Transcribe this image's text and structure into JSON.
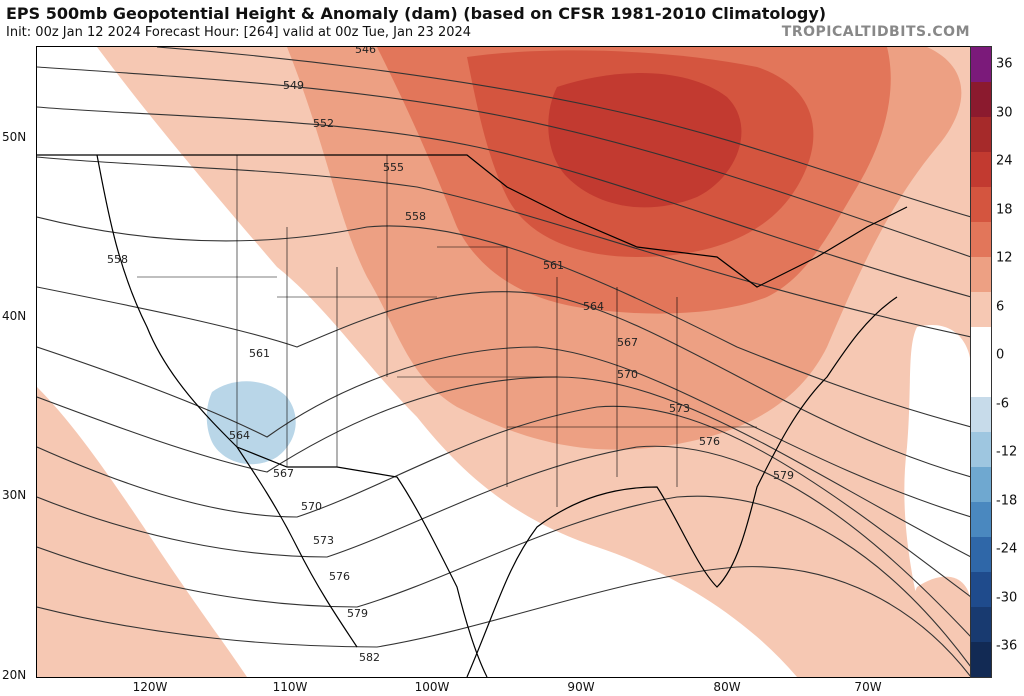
{
  "title": "EPS 500mb Geopotential Height & Anomaly (dam) (based on CFSR 1981-2010 Climatology)",
  "subtitle": "Init: 00z Jan 12 2024   Forecast Hour: [264]   valid at 00z Tue, Jan 23 2024",
  "watermark": "TROPICALTIDBITS.COM",
  "lat_labels": [
    "50N",
    "40N",
    "30N",
    "20N"
  ],
  "lon_labels": [
    "120W",
    "110W",
    "100W",
    "90W",
    "80W",
    "70W"
  ],
  "colorbar": {
    "labels": [
      "36",
      "30",
      "24",
      "18",
      "12",
      "6",
      "0",
      "-6",
      "-12",
      "-18",
      "-24",
      "-30",
      "-36"
    ],
    "colors": [
      "#7b1a7a",
      "#8b1a2e",
      "#a62a2a",
      "#c23a30",
      "#d4553f",
      "#e2765a",
      "#eda083",
      "#f6c8b3",
      "#ffffff",
      "#ffffff",
      "#c7dbea",
      "#9ec6e0",
      "#6fa8d0",
      "#4a88bf",
      "#2f67a8",
      "#1f4b8c",
      "#183a70",
      "#122a54"
    ]
  },
  "contour_labels": [
    "546",
    "549",
    "552",
    "555",
    "558",
    "558",
    "561",
    "561",
    "564",
    "564",
    "567",
    "567",
    "570",
    "570",
    "573",
    "573",
    "576",
    "576",
    "579",
    "579",
    "582"
  ],
  "legend": {
    "accent_positive": "#d4553f",
    "accent_negative": "#9ec6e0"
  }
}
